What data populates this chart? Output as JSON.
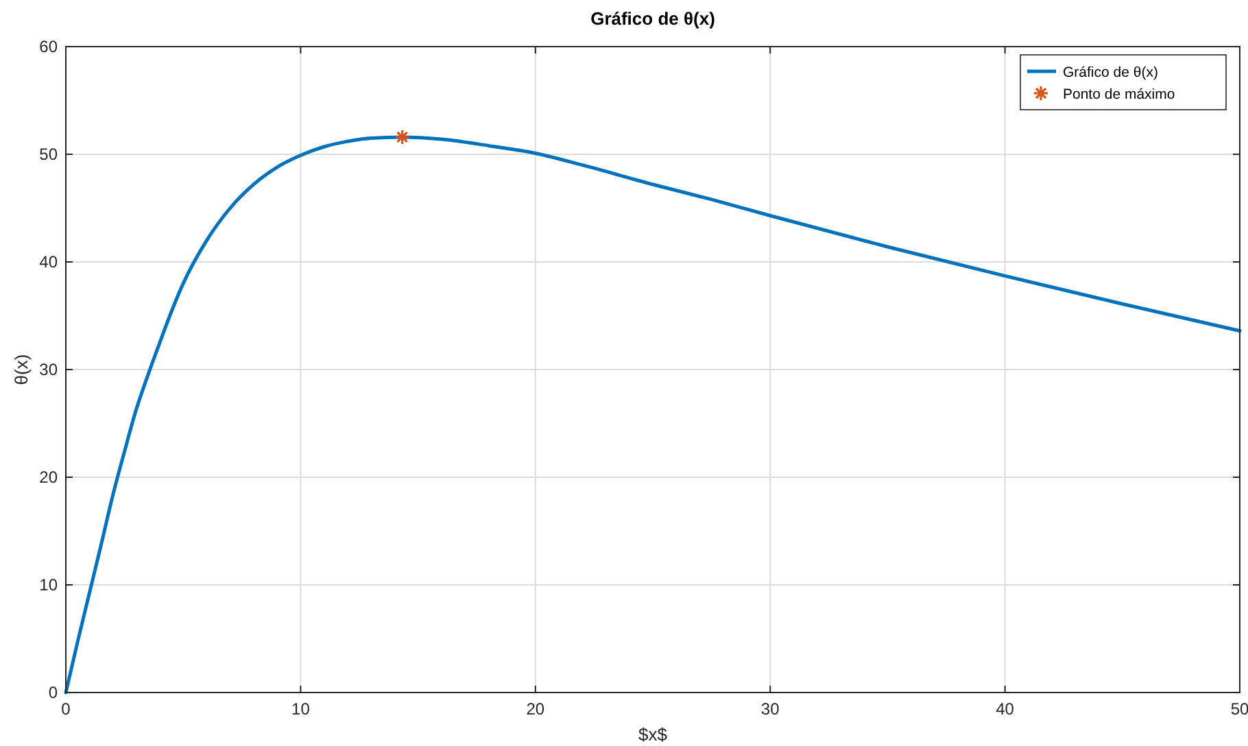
{
  "chart_data": {
    "type": "line",
    "title": "Gráfico de θ(x)",
    "xlabel": "$x$",
    "ylabel": "θ(x)",
    "xlim": [
      0,
      50
    ],
    "ylim": [
      0,
      60
    ],
    "xticks": [
      0,
      10,
      20,
      30,
      40,
      50
    ],
    "yticks": [
      0,
      10,
      20,
      30,
      40,
      50,
      60
    ],
    "grid": true,
    "legend": "top right",
    "series": [
      {
        "name": "Gráfico de θ(x)",
        "color": "#0072bd",
        "marker": "none",
        "line_style": "solid",
        "x": [
          0,
          0.5,
          1,
          1.5,
          2,
          2.5,
          3,
          3.5,
          4,
          4.5,
          5,
          6,
          7,
          8,
          9,
          10,
          11,
          12,
          13,
          14.33,
          16,
          18,
          20,
          22,
          25,
          27.5,
          30,
          35,
          40,
          45,
          50
        ],
        "values": [
          0,
          4.7,
          9.2,
          13.7,
          18.3,
          22.4,
          26.3,
          29.5,
          32.5,
          35.4,
          38.0,
          42.0,
          45.0,
          47.2,
          48.8,
          49.9,
          50.7,
          51.2,
          51.5,
          51.6,
          51.4,
          50.8,
          50.1,
          49.0,
          47.2,
          45.8,
          44.3,
          41.4,
          38.7,
          36.1,
          33.6
        ]
      },
      {
        "name": "Ponto de máximo",
        "type": "scatter",
        "color": "#d95319",
        "marker": "cross",
        "x": [
          14.33
        ],
        "values": [
          51.6
        ]
      }
    ]
  }
}
